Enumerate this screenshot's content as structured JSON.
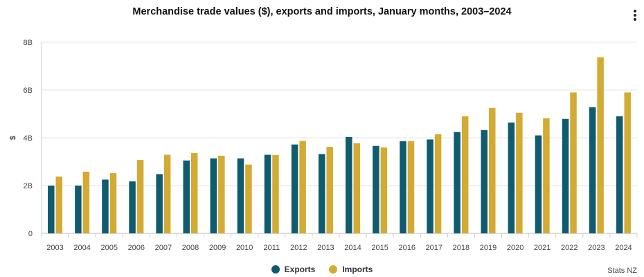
{
  "header": {
    "title": "Merchandise trade values ($), exports and imports, January months, 2003–2024",
    "menu_icon": "kebab-menu-icon"
  },
  "credit": "Stats NZ",
  "chart_data": {
    "type": "bar",
    "title": "Merchandise trade values ($), exports and imports, January months, 2003–2024",
    "xlabel": "",
    "ylabel": "$",
    "ylim": [
      0,
      8000000000
    ],
    "yticks": [
      0,
      2000000000,
      4000000000,
      6000000000,
      8000000000
    ],
    "ytick_labels": [
      "0",
      "2B",
      "4B",
      "6B",
      "8B"
    ],
    "grid": true,
    "legend_position": "bottom-center",
    "categories": [
      "2003",
      "2004",
      "2005",
      "2006",
      "2007",
      "2008",
      "2009",
      "2010",
      "2011",
      "2012",
      "2013",
      "2014",
      "2015",
      "2016",
      "2017",
      "2018",
      "2019",
      "2020",
      "2021",
      "2022",
      "2023",
      "2024"
    ],
    "series": [
      {
        "name": "Exports",
        "color": "#0f5b70",
        "values": [
          2000000000,
          2000000000,
          2250000000,
          2180000000,
          2480000000,
          3050000000,
          3140000000,
          3140000000,
          3290000000,
          3720000000,
          3320000000,
          4030000000,
          3660000000,
          3860000000,
          3930000000,
          4240000000,
          4320000000,
          4640000000,
          4100000000,
          4790000000,
          5280000000,
          4900000000
        ]
      },
      {
        "name": "Imports",
        "color": "#d3ab34",
        "values": [
          2380000000,
          2580000000,
          2520000000,
          3070000000,
          3290000000,
          3360000000,
          3250000000,
          2880000000,
          3280000000,
          3870000000,
          3620000000,
          3770000000,
          3600000000,
          3860000000,
          4150000000,
          4900000000,
          5250000000,
          5050000000,
          4820000000,
          5900000000,
          7370000000,
          5900000000
        ]
      }
    ]
  }
}
